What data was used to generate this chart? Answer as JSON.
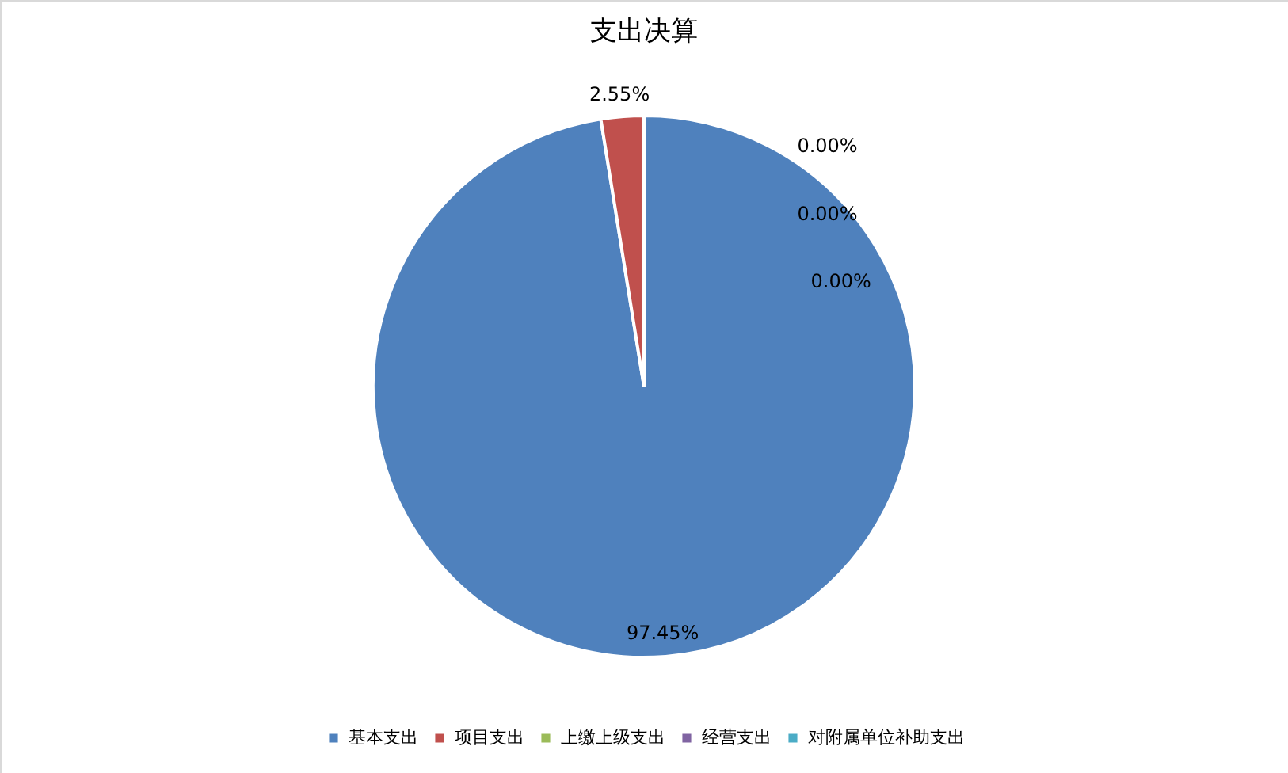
{
  "chart_data": {
    "type": "pie",
    "title": "支出决算",
    "categories": [
      "基本支出",
      "项目支出",
      "上缴上级支出",
      "经营支出",
      "对附属单位补助支出"
    ],
    "values": [
      97.45,
      2.55,
      0,
      0,
      0
    ],
    "colors": [
      "#4f81bd",
      "#c0504d",
      "#9bbb59",
      "#8064a2",
      "#4bacc6"
    ],
    "value_labels": [
      "97.45%",
      "2.55%",
      "0.00%",
      "0.00%",
      "0.00%"
    ],
    "legend": "bottom"
  }
}
